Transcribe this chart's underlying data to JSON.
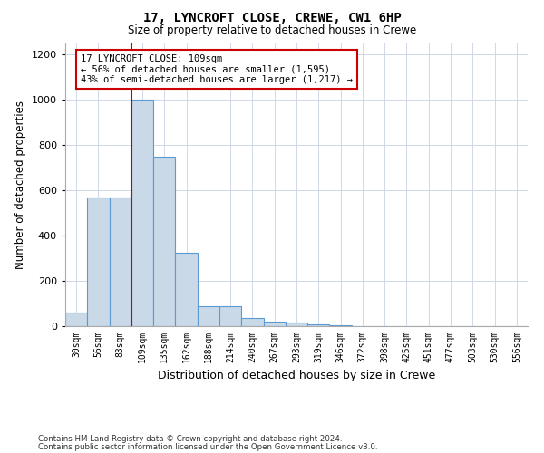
{
  "title1": "17, LYNCROFT CLOSE, CREWE, CW1 6HP",
  "title2": "Size of property relative to detached houses in Crewe",
  "xlabel": "Distribution of detached houses by size in Crewe",
  "ylabel": "Number of detached properties",
  "bins": [
    "30sqm",
    "56sqm",
    "83sqm",
    "109sqm",
    "135sqm",
    "162sqm",
    "188sqm",
    "214sqm",
    "240sqm",
    "267sqm",
    "293sqm",
    "319sqm",
    "346sqm",
    "372sqm",
    "398sqm",
    "425sqm",
    "451sqm",
    "477sqm",
    "503sqm",
    "530sqm",
    "556sqm"
  ],
  "values": [
    60,
    570,
    570,
    1000,
    750,
    325,
    90,
    90,
    35,
    20,
    15,
    10,
    5,
    2,
    1,
    0,
    0,
    0,
    0,
    0,
    0
  ],
  "bar_color": "#c9d9e8",
  "bar_edge_color": "#5b9bd5",
  "red_line_bin_index": 3,
  "annotation_text": "17 LYNCROFT CLOSE: 109sqm\n← 56% of detached houses are smaller (1,595)\n43% of semi-detached houses are larger (1,217) →",
  "annotation_box_color": "#ffffff",
  "annotation_box_edge": "#cc0000",
  "ylim": [
    0,
    1250
  ],
  "yticks": [
    0,
    200,
    400,
    600,
    800,
    1000,
    1200
  ],
  "footer1": "Contains HM Land Registry data © Crown copyright and database right 2024.",
  "footer2": "Contains public sector information licensed under the Open Government Licence v3.0.",
  "bg_color": "#ffffff",
  "grid_color": "#d0d8e8"
}
